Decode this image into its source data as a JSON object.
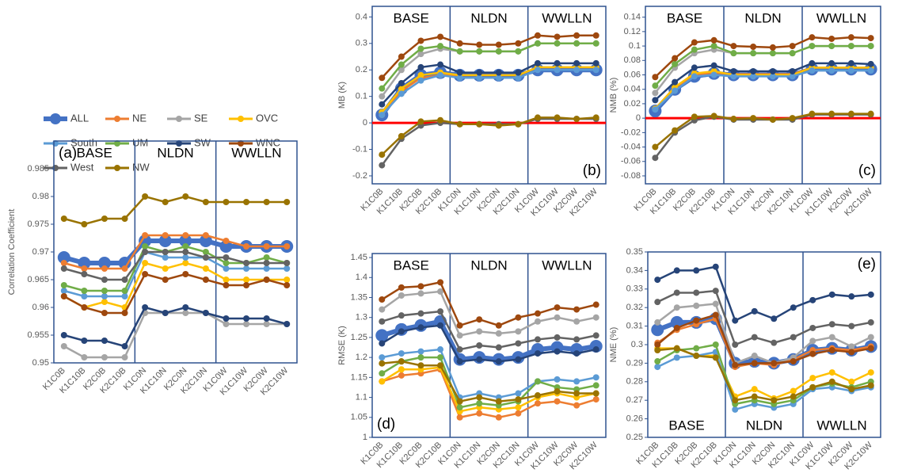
{
  "chart_data": [
    {
      "type": "line",
      "panel_label": "(a)",
      "y_label": "Correlation Coefficient",
      "sections": [
        "BASE",
        "NLDN",
        "WWLLN"
      ],
      "categories": [
        "K1C0B",
        "K1C10B",
        "K2C0B",
        "K2C10B",
        "K1C0N",
        "K1C10N",
        "K2C0N",
        "K2C10N",
        "K1C0W",
        "K1C10W",
        "K2C0W",
        "K2C10W"
      ],
      "ylim": [
        0.95,
        0.99
      ],
      "yticks": [
        0.95,
        0.955,
        0.96,
        0.965,
        0.97,
        0.975,
        0.98,
        0.985
      ],
      "series": [
        {
          "name": "ALL",
          "color": "#4472c4",
          "values": [
            0.969,
            0.968,
            0.968,
            0.968,
            0.972,
            0.972,
            0.972,
            0.972,
            0.971,
            0.971,
            0.971,
            0.971
          ]
        },
        {
          "name": "NE",
          "color": "#ed7d31",
          "values": [
            0.968,
            0.967,
            0.967,
            0.967,
            0.973,
            0.973,
            0.973,
            0.973,
            0.972,
            0.971,
            0.971,
            0.971
          ]
        },
        {
          "name": "SE",
          "color": "#a5a5a5",
          "values": [
            0.953,
            0.951,
            0.951,
            0.951,
            0.959,
            0.959,
            0.959,
            0.959,
            0.957,
            0.957,
            0.957,
            0.957
          ]
        },
        {
          "name": "OVC",
          "color": "#ffc000",
          "values": [
            0.962,
            0.96,
            0.961,
            0.96,
            0.968,
            0.967,
            0.968,
            0.967,
            0.965,
            0.965,
            0.965,
            0.965
          ]
        },
        {
          "name": "South",
          "color": "#5b9bd5",
          "values": [
            0.963,
            0.962,
            0.962,
            0.962,
            0.97,
            0.969,
            0.969,
            0.969,
            0.967,
            0.967,
            0.967,
            0.967
          ]
        },
        {
          "name": "UM",
          "color": "#70ad47",
          "values": [
            0.964,
            0.963,
            0.963,
            0.963,
            0.971,
            0.97,
            0.971,
            0.97,
            0.968,
            0.968,
            0.969,
            0.968
          ]
        },
        {
          "name": "SW",
          "color": "#264478",
          "values": [
            0.955,
            0.954,
            0.954,
            0.953,
            0.96,
            0.959,
            0.96,
            0.959,
            0.958,
            0.958,
            0.958,
            0.957
          ]
        },
        {
          "name": "WNC",
          "color": "#9e480e",
          "values": [
            0.962,
            0.96,
            0.959,
            0.959,
            0.966,
            0.965,
            0.966,
            0.965,
            0.964,
            0.964,
            0.965,
            0.964
          ]
        },
        {
          "name": "West",
          "color": "#636363",
          "values": [
            0.967,
            0.966,
            0.965,
            0.965,
            0.97,
            0.97,
            0.97,
            0.969,
            0.969,
            0.968,
            0.968,
            0.968
          ]
        },
        {
          "name": "NW",
          "color": "#997300",
          "values": [
            0.976,
            0.975,
            0.976,
            0.976,
            0.98,
            0.979,
            0.98,
            0.979,
            0.979,
            0.979,
            0.979,
            0.979
          ]
        }
      ]
    },
    {
      "type": "line",
      "panel_label": "(b)",
      "y_label": "MB (K)",
      "sections": [
        "BASE",
        "NLDN",
        "WWLLN"
      ],
      "categories": [
        "K1C0B",
        "K1C10B",
        "K2C0B",
        "K2C10B",
        "K1C0N",
        "K1C10N",
        "K2C0N",
        "K2C10N",
        "K1C0W",
        "K1C10W",
        "K2C0W",
        "K2C10W"
      ],
      "ylim": [
        -0.23,
        0.44
      ],
      "yticks": [
        -0.2,
        -0.1,
        0,
        0.1,
        0.2,
        0.3,
        0.4
      ],
      "hline": 0,
      "hline_color": "#ff0000",
      "series": [
        {
          "values": [
            0.03,
            0.13,
            0.18,
            0.19,
            0.18,
            0.18,
            0.18,
            0.18,
            0.2,
            0.2,
            0.2,
            0.2
          ]
        },
        {
          "values": [
            0.03,
            0.12,
            0.17,
            0.18,
            0.18,
            0.18,
            0.18,
            0.18,
            0.21,
            0.21,
            0.21,
            0.21
          ]
        },
        {
          "values": [
            0.1,
            0.2,
            0.26,
            0.28,
            0.27,
            0.27,
            0.27,
            0.27,
            0.3,
            0.3,
            0.3,
            0.3
          ]
        },
        {
          "values": [
            0.04,
            0.13,
            0.18,
            0.19,
            0.18,
            0.18,
            0.18,
            0.18,
            0.21,
            0.21,
            0.21,
            0.21
          ]
        },
        {
          "values": [
            0.03,
            0.11,
            0.16,
            0.18,
            0.17,
            0.17,
            0.17,
            0.17,
            0.2,
            0.2,
            0.2,
            0.2
          ]
        },
        {
          "values": [
            0.13,
            0.22,
            0.28,
            0.29,
            0.27,
            0.27,
            0.27,
            0.27,
            0.3,
            0.3,
            0.3,
            0.3
          ]
        },
        {
          "values": [
            0.07,
            0.15,
            0.21,
            0.22,
            0.19,
            0.19,
            0.19,
            0.19,
            0.225,
            0.225,
            0.225,
            0.225
          ]
        },
        {
          "values": [
            0.17,
            0.25,
            0.31,
            0.325,
            0.3,
            0.295,
            0.295,
            0.3,
            0.33,
            0.325,
            0.33,
            0.33
          ]
        },
        {
          "values": [
            -0.16,
            -0.06,
            -0.01,
            0,
            -0.005,
            -0.005,
            -0.005,
            -0.005,
            0.015,
            0.015,
            0.015,
            0.015
          ]
        },
        {
          "values": [
            -0.12,
            -0.05,
            0.005,
            0.01,
            -0.005,
            -0.005,
            -0.01,
            -0.005,
            0.02,
            0.02,
            0.015,
            0.02
          ]
        }
      ]
    },
    {
      "type": "line",
      "panel_label": "(c)",
      "y_label": "NMB (%)",
      "sections": [
        "BASE",
        "NLDN",
        "WWLLN"
      ],
      "categories": [
        "K1C0B",
        "K1C10B",
        "K2C0B",
        "K2C10B",
        "K1C0N",
        "K1C10N",
        "K2C0N",
        "K2C10N",
        "K1C0W",
        "K1C10W",
        "K2C0W",
        "K2C10W"
      ],
      "ylim": [
        -0.091,
        0.155
      ],
      "yticks": [
        -0.08,
        -0.06,
        -0.04,
        -0.02,
        0,
        0.02,
        0.04,
        0.06,
        0.08,
        0.1,
        0.12,
        0.14
      ],
      "hline": 0,
      "hline_color": "#ff0000",
      "series": [
        {
          "values": [
            0.01,
            0.04,
            0.058,
            0.062,
            0.06,
            0.06,
            0.06,
            0.06,
            0.068,
            0.068,
            0.068,
            0.068
          ]
        },
        {
          "values": [
            0.013,
            0.042,
            0.06,
            0.063,
            0.061,
            0.061,
            0.061,
            0.061,
            0.07,
            0.07,
            0.07,
            0.07
          ]
        },
        {
          "values": [
            0.035,
            0.07,
            0.09,
            0.095,
            0.09,
            0.09,
            0.09,
            0.09,
            0.1,
            0.1,
            0.1,
            0.1
          ]
        },
        {
          "values": [
            0.013,
            0.043,
            0.062,
            0.065,
            0.06,
            0.06,
            0.06,
            0.06,
            0.07,
            0.07,
            0.07,
            0.07
          ]
        },
        {
          "values": [
            0.012,
            0.038,
            0.058,
            0.06,
            0.058,
            0.058,
            0.058,
            0.058,
            0.066,
            0.066,
            0.066,
            0.066
          ]
        },
        {
          "values": [
            0.045,
            0.075,
            0.095,
            0.1,
            0.09,
            0.09,
            0.09,
            0.09,
            0.1,
            0.1,
            0.1,
            0.1
          ]
        },
        {
          "values": [
            0.025,
            0.05,
            0.07,
            0.073,
            0.065,
            0.065,
            0.065,
            0.065,
            0.076,
            0.076,
            0.076,
            0.075
          ]
        },
        {
          "values": [
            0.057,
            0.083,
            0.105,
            0.108,
            0.1,
            0.099,
            0.098,
            0.1,
            0.112,
            0.11,
            0.112,
            0.111
          ]
        },
        {
          "values": [
            -0.055,
            -0.02,
            -0.003,
            0.002,
            -0.002,
            -0.002,
            -0.002,
            -0.002,
            0.005,
            0.005,
            0.005,
            0.005
          ]
        },
        {
          "values": [
            -0.04,
            -0.017,
            0.002,
            0.003,
            -0.001,
            0,
            -0.002,
            0,
            0.006,
            0.006,
            0.006,
            0.006
          ]
        }
      ]
    },
    {
      "type": "line",
      "panel_label": "(d)",
      "y_label": "RMSE (K)",
      "sections": [
        "BASE",
        "NLDN",
        "WWLLN"
      ],
      "categories": [
        "K1C0B",
        "K1C10B",
        "K2C0B",
        "K2C10B",
        "K1C0N",
        "K1C10N",
        "K2C0N",
        "K2C10N",
        "K1C0W",
        "K1C10W",
        "K2C0W",
        "K2C10W"
      ],
      "ylim": [
        1,
        1.46
      ],
      "yticks": [
        1,
        1.05,
        1.1,
        1.15,
        1.2,
        1.25,
        1.3,
        1.35,
        1.4,
        1.45
      ],
      "series": [
        {
          "values": [
            1.255,
            1.27,
            1.28,
            1.29,
            1.195,
            1.2,
            1.195,
            1.2,
            1.22,
            1.225,
            1.22,
            1.228
          ]
        },
        {
          "values": [
            1.14,
            1.155,
            1.16,
            1.17,
            1.05,
            1.06,
            1.05,
            1.06,
            1.085,
            1.09,
            1.08,
            1.095
          ]
        },
        {
          "values": [
            1.32,
            1.355,
            1.36,
            1.365,
            1.255,
            1.265,
            1.26,
            1.265,
            1.29,
            1.3,
            1.29,
            1.3
          ]
        },
        {
          "values": [
            1.14,
            1.17,
            1.17,
            1.175,
            1.065,
            1.075,
            1.07,
            1.075,
            1.1,
            1.11,
            1.1,
            1.11
          ]
        },
        {
          "values": [
            1.2,
            1.21,
            1.215,
            1.22,
            1.1,
            1.11,
            1.1,
            1.11,
            1.14,
            1.145,
            1.14,
            1.15
          ]
        },
        {
          "values": [
            1.16,
            1.19,
            1.2,
            1.2,
            1.075,
            1.085,
            1.08,
            1.09,
            1.14,
            1.125,
            1.12,
            1.13
          ]
        },
        {
          "values": [
            1.235,
            1.265,
            1.275,
            1.28,
            1.19,
            1.195,
            1.19,
            1.195,
            1.21,
            1.215,
            1.21,
            1.22
          ]
        },
        {
          "values": [
            1.345,
            1.375,
            1.378,
            1.388,
            1.28,
            1.295,
            1.28,
            1.3,
            1.31,
            1.325,
            1.32,
            1.332
          ]
        },
        {
          "values": [
            1.29,
            1.305,
            1.31,
            1.315,
            1.22,
            1.23,
            1.225,
            1.235,
            1.245,
            1.25,
            1.245,
            1.255
          ]
        },
        {
          "values": [
            1.185,
            1.19,
            1.18,
            1.18,
            1.09,
            1.1,
            1.09,
            1.095,
            1.105,
            1.115,
            1.11,
            1.11
          ]
        }
      ]
    },
    {
      "type": "line",
      "panel_label": "(e)",
      "y_label": "NME (%)",
      "sections": [
        "BASE",
        "NLDN",
        "WWLLN"
      ],
      "categories": [
        "K1C0B",
        "K1C10B",
        "K2C0B",
        "K2C10B",
        "K1C0N",
        "K1C10N",
        "K2C0N",
        "K2C10N",
        "K1C0W",
        "K1C10W",
        "K2C0W",
        "K2C10W"
      ],
      "ylim": [
        0.25,
        0.35
      ],
      "yticks": [
        0.25,
        0.26,
        0.27,
        0.28,
        0.29,
        0.3,
        0.31,
        0.32,
        0.33,
        0.34,
        0.35
      ],
      "series": [
        {
          "values": [
            0.308,
            0.312,
            0.312,
            0.314,
            0.29,
            0.291,
            0.29,
            0.292,
            0.297,
            0.298,
            0.297,
            0.299
          ]
        },
        {
          "values": [
            0.301,
            0.308,
            0.311,
            0.314,
            0.288,
            0.29,
            0.289,
            0.292,
            0.297,
            0.298,
            0.297,
            0.299
          ]
        },
        {
          "values": [
            0.312,
            0.32,
            0.321,
            0.322,
            0.29,
            0.294,
            0.29,
            0.293,
            0.302,
            0.304,
            0.299,
            0.304
          ]
        },
        {
          "values": [
            0.298,
            0.298,
            0.294,
            0.294,
            0.272,
            0.276,
            0.271,
            0.275,
            0.282,
            0.285,
            0.28,
            0.285
          ]
        },
        {
          "values": [
            0.288,
            0.293,
            0.294,
            0.296,
            0.265,
            0.268,
            0.266,
            0.268,
            0.276,
            0.277,
            0.275,
            0.277
          ]
        },
        {
          "values": [
            0.291,
            0.297,
            0.298,
            0.3,
            0.268,
            0.27,
            0.268,
            0.27,
            0.277,
            0.279,
            0.277,
            0.28
          ]
        },
        {
          "values": [
            0.335,
            0.34,
            0.34,
            0.342,
            0.313,
            0.318,
            0.314,
            0.32,
            0.324,
            0.327,
            0.326,
            0.327
          ]
        },
        {
          "values": [
            0.3,
            0.309,
            0.313,
            0.316,
            0.289,
            0.29,
            0.29,
            0.291,
            0.295,
            0.297,
            0.296,
            0.298
          ]
        },
        {
          "values": [
            0.323,
            0.328,
            0.328,
            0.329,
            0.3,
            0.304,
            0.301,
            0.304,
            0.309,
            0.311,
            0.31,
            0.312
          ]
        },
        {
          "values": [
            0.297,
            0.298,
            0.294,
            0.293,
            0.27,
            0.272,
            0.27,
            0.272,
            0.277,
            0.28,
            0.276,
            0.278
          ]
        }
      ]
    }
  ]
}
